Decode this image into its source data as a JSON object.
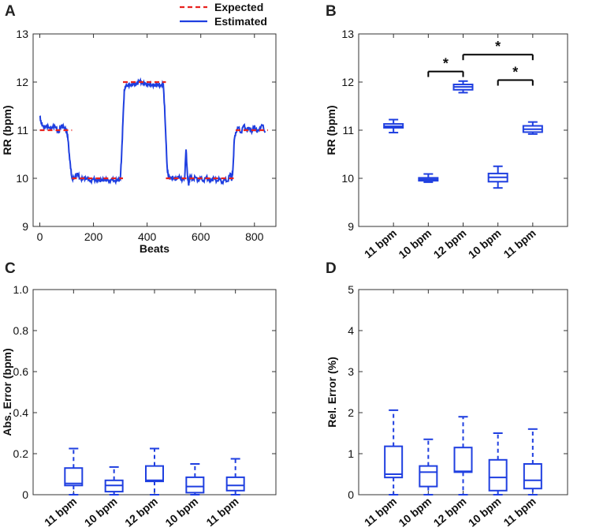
{
  "chart_data": [
    {
      "panel": "A",
      "type": "line",
      "xlabel": "Beats",
      "ylabel": "RR (bpm)",
      "xlim": [
        -25,
        880
      ],
      "ylim": [
        9,
        13
      ],
      "xticks": [
        0,
        200,
        400,
        600,
        800
      ],
      "yticks": [
        9,
        10,
        11,
        12,
        13
      ],
      "legend": [
        "Expected",
        "Estimated"
      ],
      "legend_position": "top-right-outside",
      "colors": {
        "Expected": "#e8231f",
        "Estimated": "#1f3fe0"
      },
      "series": [
        {
          "name": "Expected",
          "style": "dashed",
          "segments": [
            {
              "x": [
                0,
                120
              ],
              "y": [
                11,
                11
              ]
            },
            {
              "x": [
                120,
                310
              ],
              "y": [
                10,
                10
              ]
            },
            {
              "x": [
                310,
                470
              ],
              "y": [
                12,
                12
              ]
            },
            {
              "x": [
                470,
                730
              ],
              "y": [
                10,
                10
              ]
            },
            {
              "x": [
                730,
                850
              ],
              "y": [
                11,
                11
              ]
            }
          ]
        },
        {
          "name": "Estimated",
          "style": "solid",
          "x": [
            0,
            5,
            10,
            20,
            30,
            40,
            50,
            60,
            70,
            80,
            90,
            100,
            105,
            110,
            115,
            120,
            130,
            140,
            150,
            160,
            170,
            180,
            190,
            200,
            210,
            220,
            230,
            240,
            250,
            260,
            270,
            280,
            290,
            300,
            305,
            310,
            315,
            320,
            330,
            340,
            350,
            360,
            370,
            380,
            390,
            400,
            410,
            420,
            430,
            440,
            450,
            460,
            465,
            470,
            475,
            480,
            490,
            500,
            510,
            520,
            530,
            540,
            545,
            550,
            555,
            560,
            570,
            580,
            590,
            600,
            610,
            620,
            630,
            640,
            650,
            660,
            670,
            680,
            690,
            700,
            710,
            715,
            720,
            725,
            730,
            740,
            750,
            760,
            770,
            780,
            790,
            800,
            810,
            820,
            830,
            840
          ],
          "y": [
            11.3,
            11.15,
            11.1,
            11.05,
            11.1,
            11.0,
            11.1,
            11.05,
            10.95,
            11.1,
            11.05,
            11.0,
            10.8,
            10.5,
            10.2,
            10.0,
            10.0,
            10.1,
            10.0,
            9.98,
            10.02,
            9.97,
            9.95,
            9.98,
            9.96,
            9.97,
            9.95,
            9.98,
            9.96,
            9.95,
            9.97,
            9.95,
            9.96,
            9.98,
            10.5,
            11.2,
            11.85,
            11.9,
            11.95,
            11.92,
            11.98,
            11.95,
            12.02,
            12.0,
            11.95,
            11.97,
            11.93,
            11.95,
            11.92,
            11.95,
            11.93,
            11.96,
            11.5,
            10.8,
            10.2,
            10.0,
            10.02,
            10.0,
            9.98,
            10.05,
            9.95,
            10.02,
            10.6,
            10.1,
            9.85,
            10.05,
            9.97,
            10.02,
            9.96,
            10.0,
            9.95,
            10.02,
            9.97,
            9.96,
            10.0,
            9.95,
            9.98,
            9.92,
            9.97,
            9.94,
            10.1,
            9.95,
            10.2,
            10.8,
            10.95,
            11.05,
            10.95,
            11.1,
            11.0,
            11.05,
            10.95,
            11.1,
            10.95,
            11.05,
            11.1,
            10.95
          ]
        }
      ]
    },
    {
      "panel": "B",
      "type": "box",
      "ylabel": "RR (bpm)",
      "ylim": [
        9,
        13
      ],
      "yticks": [
        9,
        10,
        11,
        12,
        13
      ],
      "categories": [
        "11 bpm",
        "10 bpm",
        "12 bpm",
        "10 bpm",
        "11 bpm"
      ],
      "boxes": [
        {
          "min": 10.95,
          "q1": 11.05,
          "median": 11.08,
          "q3": 11.13,
          "max": 11.22
        },
        {
          "min": 9.92,
          "q1": 9.95,
          "median": 9.98,
          "q3": 10.01,
          "max": 10.09
        },
        {
          "min": 11.78,
          "q1": 11.84,
          "median": 11.9,
          "q3": 11.95,
          "max": 12.02
        },
        {
          "min": 9.8,
          "q1": 9.93,
          "median": 10.02,
          "q3": 10.1,
          "max": 10.25
        },
        {
          "min": 10.92,
          "q1": 10.96,
          "median": 11.02,
          "q3": 11.09,
          "max": 11.17
        }
      ],
      "significance": [
        {
          "from": 1,
          "to": 2,
          "y": 12.22,
          "label": "*"
        },
        {
          "from": 2,
          "to": 4,
          "y": 12.57,
          "label": "*"
        },
        {
          "from": 3,
          "to": 4,
          "y": 12.04,
          "label": "*"
        }
      ]
    },
    {
      "panel": "C",
      "type": "box",
      "ylabel": "Abs. Error (bpm)",
      "ylim": [
        0,
        1.0
      ],
      "yticks": [
        "0",
        "0.2",
        "0.4",
        "0.6",
        "0.8",
        "1.0"
      ],
      "categories": [
        "11 bpm",
        "10 bpm",
        "12 bpm",
        "10 bpm",
        "11 bpm"
      ],
      "boxes": [
        {
          "min": 0.0,
          "q1": 0.045,
          "median": 0.055,
          "q3": 0.13,
          "max": 0.225
        },
        {
          "min": 0.0,
          "q1": 0.015,
          "median": 0.045,
          "q3": 0.07,
          "max": 0.135
        },
        {
          "min": 0.0,
          "q1": 0.065,
          "median": 0.07,
          "q3": 0.14,
          "max": 0.225
        },
        {
          "min": 0.0,
          "q1": 0.01,
          "median": 0.04,
          "q3": 0.085,
          "max": 0.15
        },
        {
          "min": 0.0,
          "q1": 0.02,
          "median": 0.045,
          "q3": 0.085,
          "max": 0.175
        }
      ]
    },
    {
      "panel": "D",
      "type": "box",
      "ylabel": "Rel. Error (%)",
      "ylim": [
        0,
        5
      ],
      "yticks": [
        "0",
        "1",
        "2",
        "3",
        "4",
        "5"
      ],
      "categories": [
        "11 bpm",
        "10 bpm",
        "12 bpm",
        "10 bpm",
        "11 bpm"
      ],
      "boxes": [
        {
          "min": 0.0,
          "q1": 0.42,
          "median": 0.5,
          "q3": 1.18,
          "max": 2.06
        },
        {
          "min": 0.0,
          "q1": 0.2,
          "median": 0.55,
          "q3": 0.7,
          "max": 1.35
        },
        {
          "min": 0.0,
          "q1": 0.55,
          "median": 0.57,
          "q3": 1.15,
          "max": 1.9
        },
        {
          "min": 0.0,
          "q1": 0.1,
          "median": 0.42,
          "q3": 0.85,
          "max": 1.5
        },
        {
          "min": 0.0,
          "q1": 0.15,
          "median": 0.35,
          "q3": 0.75,
          "max": 1.6
        }
      ]
    }
  ]
}
